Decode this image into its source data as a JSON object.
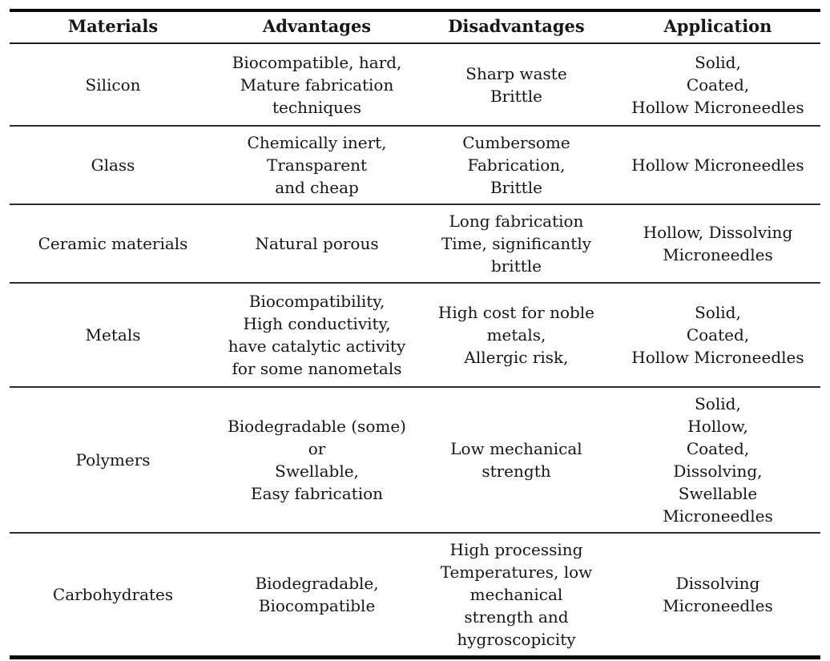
{
  "table": {
    "headers": [
      "Materials",
      "Advantages",
      "Disadvantages",
      "Application"
    ],
    "rows": [
      {
        "material": "Silicon",
        "advantages": "Biocompatible, hard,\nMature fabrication\ntechniques",
        "disadvantages": "Sharp waste\nBrittle",
        "application": "Solid,\nCoated,\nHollow Microneedles"
      },
      {
        "material": "Glass",
        "advantages": "Chemically inert,\nTransparent\nand cheap",
        "disadvantages": "Cumbersome\nFabrication,\nBrittle",
        "application": "Hollow Microneedles"
      },
      {
        "material": "Ceramic materials",
        "advantages": "Natural porous",
        "disadvantages": "Long fabrication\nTime, significantly\nbrittle",
        "application": "Hollow, Dissolving\nMicroneedles"
      },
      {
        "material": "Metals",
        "advantages": "Biocompatibility,\nHigh conductivity,\nhave catalytic activity\nfor some nanometals",
        "disadvantages": "High cost for noble\nmetals,\nAllergic risk,",
        "application": "Solid,\nCoated,\nHollow Microneedles"
      },
      {
        "material": "Polymers",
        "advantages": "Biodegradable (some)\nor\nSwellable,\nEasy fabrication",
        "disadvantages": "Low mechanical\nstrength",
        "application": "Solid,\nHollow,\nCoated,\nDissolving,\nSwellable\nMicroneedles"
      },
      {
        "material": "Carbohydrates",
        "advantages": "Biodegradable,\nBiocompatible",
        "disadvantages": "High processing\nTemperatures, low\nmechanical\nstrength and\nhygroscopicity",
        "application": "Dissolving\nMicroneedles"
      }
    ],
    "colors": {
      "text": "#161616",
      "rule_heavy": "#0a0a0a",
      "rule_light": "#2e2e2e",
      "background": "#ffffff"
    }
  }
}
